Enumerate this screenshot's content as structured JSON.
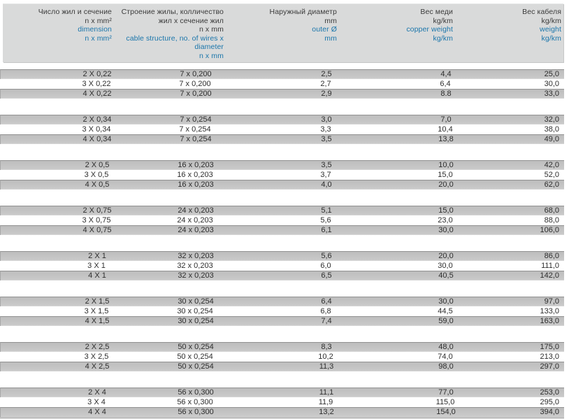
{
  "document": {
    "type": "cable-specification-table",
    "colors": {
      "accent_blue": "#1b76ab",
      "header_bg": "#d9dada",
      "row_gray": "#c5c5c5",
      "text_black": "#3b3b3b"
    },
    "header_columns": [
      {
        "black_lines": [
          "Число жил и сечение",
          "n x mm²"
        ],
        "blue_lines": [
          "dimension",
          "n x mm²"
        ]
      },
      {
        "black_lines": [
          "Строение жилы, колличество",
          "жил x сечение жил",
          "n x mm"
        ],
        "blue_lines": [
          "cable structure, no. of wires x",
          "diameter",
          "n x mm"
        ]
      },
      {
        "black_lines": [
          "Наружный диаметр",
          "mm"
        ],
        "blue_lines": [
          "outer Ø",
          "mm"
        ]
      },
      {
        "black_lines": [
          "Вес меди",
          "kg/km"
        ],
        "blue_lines": [
          "copper weight",
          "kg/km"
        ]
      },
      {
        "black_lines": [
          "Вес кабеля",
          "kg/km"
        ],
        "blue_lines": [
          "weight",
          "kg/km"
        ]
      }
    ],
    "groups": [
      {
        "rows": [
          [
            "2 X 0,22",
            "7 x 0,200",
            "2,5",
            "4,4",
            "25,0"
          ],
          [
            "3 X 0,22",
            "7 x 0,200",
            "2,7",
            "6,4",
            "30,0"
          ],
          [
            "4 X 0,22",
            "7 x 0,200",
            "2,9",
            "8.8",
            "33,0"
          ]
        ]
      },
      {
        "rows": [
          [
            "2 X 0,34",
            "7 x 0,254",
            "3,0",
            "7,0",
            "32,0"
          ],
          [
            "3 X 0,34",
            "7 x 0,254",
            "3,3",
            "10,4",
            "38,0"
          ],
          [
            "4 X 0,34",
            "7 x 0,254",
            "3,5",
            "13,8",
            "49,0"
          ]
        ]
      },
      {
        "rows": [
          [
            "2 X 0,5",
            "16 x 0,203",
            "3,5",
            "10,0",
            "42,0"
          ],
          [
            "3 X 0,5",
            "16 x 0,203",
            "3,7",
            "15,0",
            "52,0"
          ],
          [
            "4 X 0,5",
            "16 x 0,203",
            "4,0",
            "20,0",
            "62,0"
          ]
        ]
      },
      {
        "rows": [
          [
            "2 X 0,75",
            "24 x 0,203",
            "5,1",
            "15,0",
            "68,0"
          ],
          [
            "3 X 0,75",
            "24 x 0,203",
            "5,6",
            "23,0",
            "88,0"
          ],
          [
            "4 X 0,75",
            "24 x 0,203",
            "6,1",
            "30,0",
            "106,0"
          ]
        ]
      },
      {
        "rows": [
          [
            "2 X 1",
            "32 x 0,203",
            "5,6",
            "20,0",
            "86,0"
          ],
          [
            "3 X 1",
            "32 x 0,203",
            "6,0",
            "30,0",
            "111,0"
          ],
          [
            "4 X 1",
            "32 x 0,203",
            "6,5",
            "40,5",
            "142,0"
          ]
        ]
      },
      {
        "rows": [
          [
            "2 X 1,5",
            "30 x 0,254",
            "6,4",
            "30,0",
            "97,0"
          ],
          [
            "3 X 1,5",
            "30 x 0,254",
            "6,8",
            "44,5",
            "133,0"
          ],
          [
            "4 X 1,5",
            "30 x 0,254",
            "7,4",
            "59,0",
            "163,0"
          ]
        ]
      },
      {
        "rows": [
          [
            "2 X 2,5",
            "50 x 0,254",
            "8,3",
            "48,0",
            "175,0"
          ],
          [
            "3 X 2,5",
            "50 x 0,254",
            "10,2",
            "74,0",
            "213,0"
          ],
          [
            "4 X 2,5",
            "50 x 0,254",
            "11,3",
            "98,0",
            "297,0"
          ]
        ]
      },
      {
        "rows": [
          [
            "2 X 4",
            "56 x 0,300",
            "11,1",
            "77,0",
            "253,0"
          ],
          [
            "3 X 4",
            "56 x 0,300",
            "11,9",
            "115,0",
            "295,0"
          ],
          [
            "4 X 4",
            "56 x 0,300",
            "13,2",
            "154,0",
            "394,0"
          ]
        ]
      }
    ]
  }
}
